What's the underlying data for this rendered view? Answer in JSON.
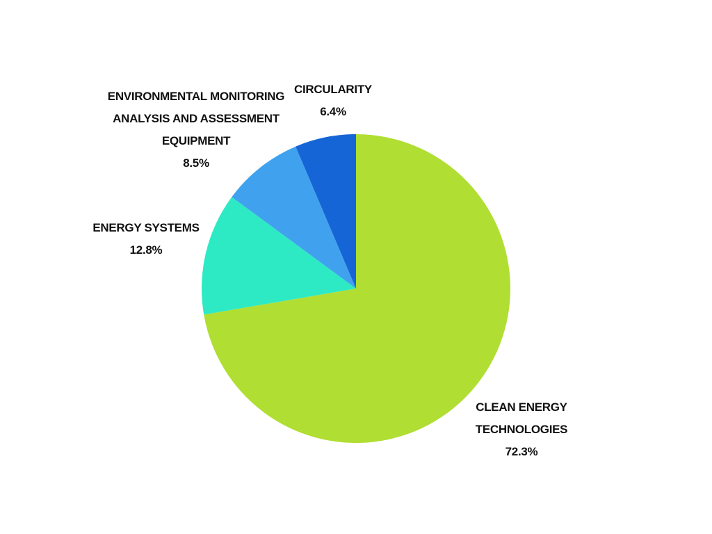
{
  "chart_data": {
    "type": "pie",
    "categories": [
      "CLEAN ENERGY TECHNOLOGIES",
      "ENERGY SYSTEMS",
      "ENVIRONMENTAL MONITORING ANALYSIS AND ASSESSMENT EQUIPMENT",
      "CIRCULARITY"
    ],
    "values": [
      72.3,
      12.8,
      8.5,
      6.4
    ],
    "value_labels": [
      "72.3%",
      "12.8%",
      "8.5%",
      "6.4%"
    ],
    "colors": [
      "#b0de33",
      "#2deac4",
      "#40a2ee",
      "#1665d6"
    ]
  }
}
